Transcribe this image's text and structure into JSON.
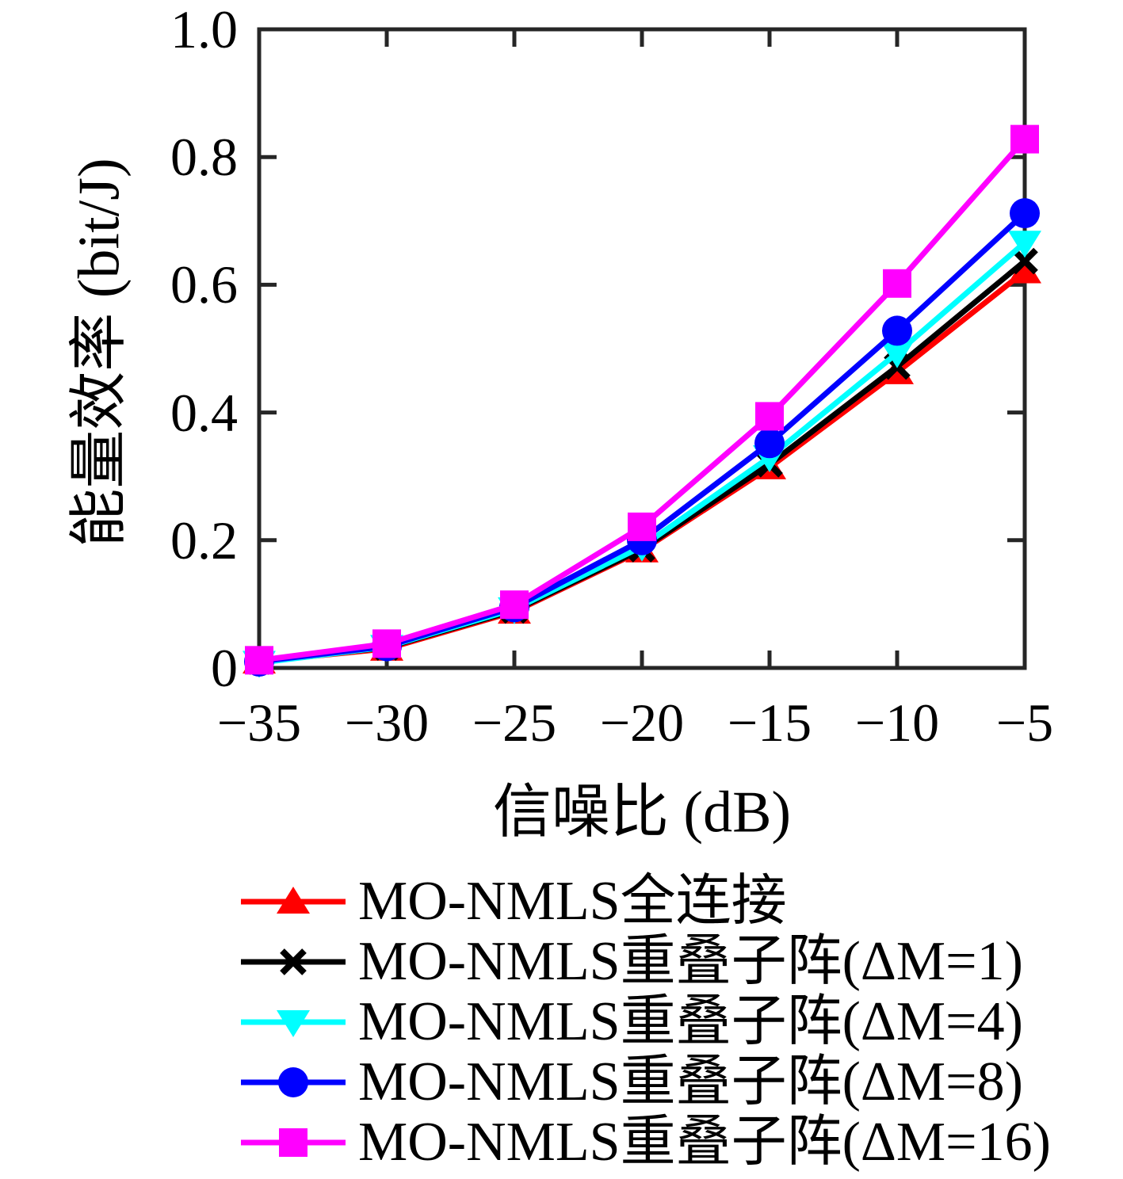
{
  "chart_data": {
    "type": "line",
    "title": "",
    "xlabel": "信噪比 (dB)",
    "ylabel": "能量效率 (bit/J)",
    "x": [
      -35,
      -30,
      -25,
      -20,
      -15,
      -10,
      -5
    ],
    "xlim": [
      -35,
      -5
    ],
    "ylim": [
      0,
      1
    ],
    "xtick_values": [
      -35,
      -30,
      -25,
      -20,
      -15,
      -10,
      -5
    ],
    "xtick_labels": [
      "−35",
      "−30",
      "−25",
      "−20",
      "−15",
      "−10",
      "−5"
    ],
    "ytick_values": [
      0,
      0.2,
      0.4,
      0.6,
      0.8,
      1.0
    ],
    "ytick_labels": [
      "0",
      "0.2",
      "0.4",
      "0.6",
      "0.8",
      "1.0"
    ],
    "grid": false,
    "legend_position": "below-left",
    "axis_color": "#262626",
    "background_color": "#ffffff",
    "series": [
      {
        "name": "MO-NMLS全连接",
        "color": "#ff0000",
        "marker": "triangle-up",
        "values": [
          0.01,
          0.03,
          0.088,
          0.184,
          0.314,
          0.463,
          0.621
        ]
      },
      {
        "name": "MO-NMLS重叠子阵(ΔM=1)",
        "color": "#000000",
        "marker": "x",
        "values": [
          0.01,
          0.032,
          0.09,
          0.186,
          0.319,
          0.472,
          0.637
        ]
      },
      {
        "name": "MO-NMLS重叠子阵(ΔM=4)",
        "color": "#00ffff",
        "marker": "triangle-down",
        "values": [
          0.008,
          0.033,
          0.092,
          0.19,
          0.33,
          0.493,
          0.666
        ]
      },
      {
        "name": "MO-NMLS重叠子阵(ΔM=8)",
        "color": "#0000ff",
        "marker": "circle",
        "values": [
          0.01,
          0.034,
          0.095,
          0.2,
          0.352,
          0.528,
          0.712
        ]
      },
      {
        "name": "MO-NMLS重叠子阵(ΔM=16)",
        "color": "#ff00ff",
        "marker": "square",
        "values": [
          0.012,
          0.038,
          0.099,
          0.221,
          0.394,
          0.602,
          0.828
        ]
      }
    ]
  }
}
